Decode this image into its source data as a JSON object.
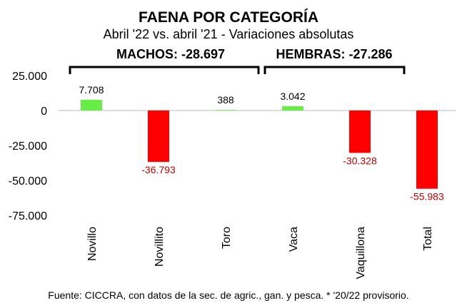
{
  "chart_data": {
    "type": "bar",
    "title": "FAENA POR CATEGORÍA",
    "subtitle": "Abril '22 vs. abril '21 - Variaciones absolutas",
    "groups": [
      {
        "label": "MACHOS: -28.697",
        "categories": [
          "Novillo",
          "Novillito",
          "Toro"
        ]
      },
      {
        "label": "HEMBRAS: -27.286",
        "categories": [
          "Vaca",
          "Vaquillona"
        ]
      }
    ],
    "categories": [
      "Novillo",
      "Novillito",
      "Toro",
      "Vaca",
      "Vaquillona",
      "Total"
    ],
    "values": [
      7708,
      -36793,
      388,
      3042,
      -30328,
      -55983
    ],
    "value_labels": [
      "7.708",
      "-36.793",
      "388",
      "3.042",
      "-30.328",
      "-55.983"
    ],
    "ylim": [
      -75000,
      25000
    ],
    "yticks": [
      25000,
      0,
      -25000,
      -50000,
      -75000
    ],
    "ytick_labels": [
      "25.000",
      "0",
      "-25.000",
      "-50.000",
      "-75.000"
    ],
    "colors": {
      "positive": "#66ee44",
      "negative": "#ff0000",
      "negative_label": "#c00000",
      "positive_label": "#000000",
      "axis": "#d0d0d0"
    },
    "legend": "none",
    "grid": false
  },
  "footer": {
    "source": "Fuente: CICCRA, con datos de la sec. de agric., gan. y pesca. * '20/22 provisorio."
  }
}
